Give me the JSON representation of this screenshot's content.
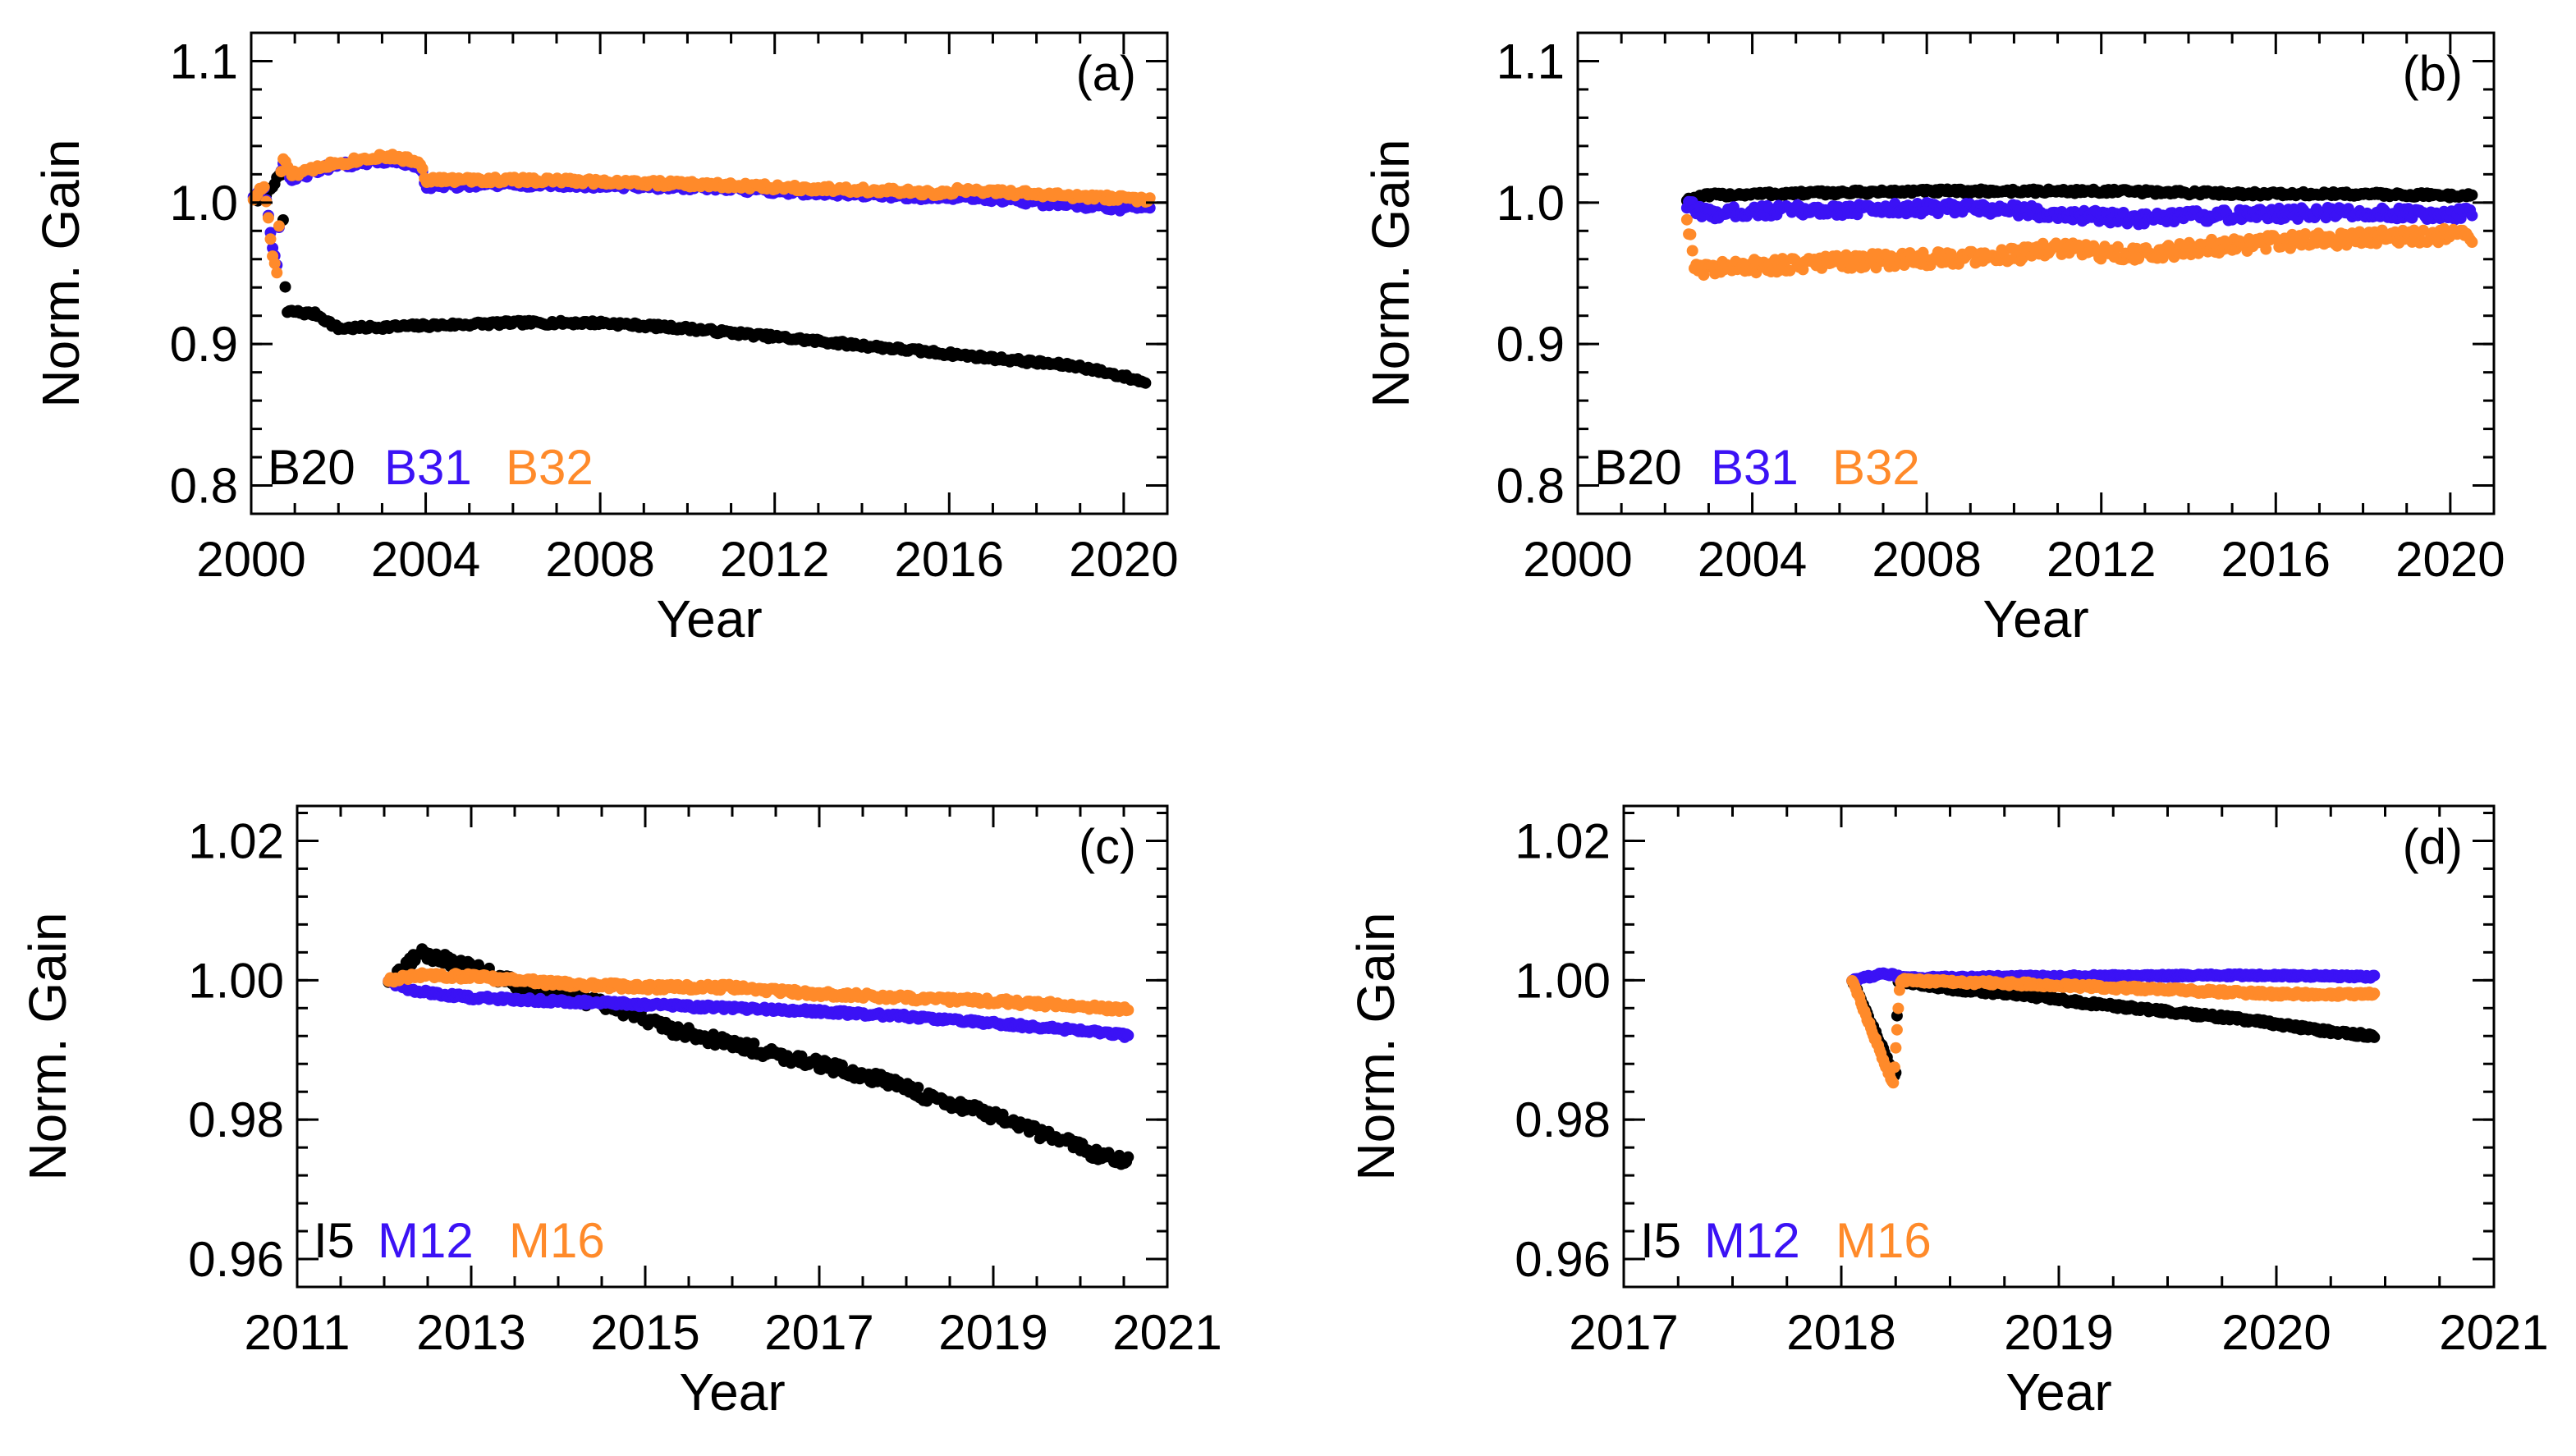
{
  "colors": {
    "black": "#000000",
    "blue": "#3b12f5",
    "orange": "#ff8a2a"
  },
  "chart_data": [
    {
      "id": "a",
      "type": "scatter",
      "panel_label": "(a)",
      "xlabel": "Year",
      "ylabel": "Norm. Gain",
      "xlim": [
        2000,
        2021
      ],
      "ylim": [
        0.78,
        1.12
      ],
      "xticks": [
        2000,
        2004,
        2008,
        2012,
        2016,
        2020
      ],
      "yticks": [
        0.8,
        0.9,
        1.0,
        1.1
      ],
      "ytick_labels": [
        "0.8",
        "0.9",
        "1.0",
        "1.1"
      ],
      "legend": [
        {
          "label": "B20",
          "color": "#000000"
        },
        {
          "label": "B31",
          "color": "#3b12f5"
        },
        {
          "label": "B32",
          "color": "#ff8a2a"
        }
      ],
      "series": [
        {
          "name": "B20",
          "color": "#000000",
          "jitter": 0.0015,
          "x": [
            2000.15,
            2000.4,
            2000.55,
            2000.7,
            2000.8,
            2000.95,
            2001.2,
            2001.5,
            2002,
            2003,
            2004,
            2005,
            2006,
            2007,
            2008,
            2009,
            2010,
            2011,
            2012,
            2013,
            2014,
            2015,
            2016,
            2017,
            2018,
            2019,
            2020,
            2020.5
          ],
          "y": [
            1.002,
            1.008,
            1.015,
            1.02,
            0.922,
            0.923,
            0.922,
            0.921,
            0.911,
            0.912,
            0.913,
            0.914,
            0.915,
            0.915,
            0.915,
            0.913,
            0.911,
            0.908,
            0.905,
            0.902,
            0.899,
            0.896,
            0.893,
            0.89,
            0.887,
            0.884,
            0.877,
            0.873
          ]
        },
        {
          "name": "B31",
          "color": "#3b12f5",
          "jitter": 0.002,
          "x": [
            2000.05,
            2000.3,
            2000.5,
            2000.6,
            2000.7,
            2000.9,
            2001.3,
            2001.6,
            2002,
            2003,
            2003.5,
            2003.9,
            2004,
            2006,
            2008,
            2010,
            2012,
            2014,
            2016,
            2016.2,
            2018,
            2019,
            2020,
            2020.6
          ],
          "y": [
            1.005,
            1.01,
            0.965,
            0.955,
            1.03,
            1.016,
            1.02,
            1.024,
            1.026,
            1.03,
            1.028,
            1.025,
            1.012,
            1.013,
            1.012,
            1.011,
            1.008,
            1.006,
            1.003,
            1.005,
            1.0,
            0.998,
            0.996,
            0.998
          ]
        },
        {
          "name": "B32",
          "color": "#ff8a2a",
          "jitter": 0.002,
          "x": [
            2000.05,
            2000.3,
            2000.5,
            2000.6,
            2000.7,
            2000.9,
            2001.3,
            2001.6,
            2002,
            2003,
            2003.5,
            2003.9,
            2004,
            2006,
            2008,
            2010,
            2012,
            2014,
            2016,
            2016.2,
            2018,
            2019,
            2020,
            2020.6
          ],
          "y": [
            1.003,
            1.012,
            0.96,
            0.95,
            1.033,
            1.02,
            1.022,
            1.026,
            1.028,
            1.033,
            1.031,
            1.028,
            1.016,
            1.016,
            1.015,
            1.013,
            1.011,
            1.009,
            1.006,
            1.009,
            1.006,
            1.004,
            1.003,
            1.002
          ]
        }
      ]
    },
    {
      "id": "b",
      "type": "scatter",
      "panel_label": "(b)",
      "xlabel": "Year",
      "ylabel": "Norm. Gain",
      "xlim": [
        2000,
        2021
      ],
      "ylim": [
        0.78,
        1.12
      ],
      "xticks": [
        2000,
        2004,
        2008,
        2012,
        2016,
        2020
      ],
      "yticks": [
        0.8,
        0.9,
        1.0,
        1.1
      ],
      "ytick_labels": [
        "0.8",
        "0.9",
        "1.0",
        "1.1"
      ],
      "legend": [
        {
          "label": "B20",
          "color": "#000000"
        },
        {
          "label": "B31",
          "color": "#3b12f5"
        },
        {
          "label": "B32",
          "color": "#ff8a2a"
        }
      ],
      "series": [
        {
          "name": "B20",
          "color": "#000000",
          "jitter": 0.0015,
          "x": [
            2002.5,
            2003,
            2004,
            2006,
            2008,
            2010,
            2012,
            2014,
            2016,
            2018,
            2020,
            2020.5
          ],
          "y": [
            1.002,
            1.005,
            1.006,
            1.007,
            1.008,
            1.008,
            1.008,
            1.007,
            1.006,
            1.006,
            1.005,
            1.005
          ]
        },
        {
          "name": "B31",
          "color": "#3b12f5",
          "jitter": 0.004,
          "x": [
            2002.5,
            2003,
            2004,
            2006,
            2008,
            2010,
            2011,
            2012,
            2013,
            2014,
            2016,
            2018,
            2020,
            2020.5
          ],
          "y": [
            0.998,
            0.992,
            0.994,
            0.995,
            0.996,
            0.995,
            0.992,
            0.99,
            0.988,
            0.99,
            0.992,
            0.993,
            0.992,
            0.992
          ]
        },
        {
          "name": "B32",
          "color": "#ff8a2a",
          "jitter": 0.005,
          "x": [
            2002.5,
            2002.7,
            2004,
            2006,
            2008,
            2010,
            2011,
            2012,
            2013,
            2014,
            2016,
            2018,
            2020,
            2020.5
          ],
          "y": [
            0.99,
            0.953,
            0.955,
            0.958,
            0.96,
            0.963,
            0.968,
            0.965,
            0.963,
            0.968,
            0.972,
            0.975,
            0.977,
            0.976
          ]
        }
      ]
    },
    {
      "id": "c",
      "type": "scatter",
      "panel_label": "(c)",
      "xlabel": "Year",
      "ylabel": "Norm. Gain",
      "xlim": [
        2011,
        2021
      ],
      "ylim": [
        0.956,
        1.025
      ],
      "xticks": [
        2011,
        2013,
        2015,
        2017,
        2019,
        2021
      ],
      "yticks": [
        0.96,
        0.98,
        1.0,
        1.02
      ],
      "ytick_labels": [
        "0.96",
        "0.98",
        "1.00",
        "1.02"
      ],
      "legend": [
        {
          "label": "I5",
          "color": "#000000"
        },
        {
          "label": "M12",
          "color": "#3b12f5"
        },
        {
          "label": "M16",
          "color": "#ff8a2a"
        }
      ],
      "series": [
        {
          "name": "I5",
          "color": "#000000",
          "jitter": 0.0008,
          "x": [
            2012.05,
            2012.2,
            2012.4,
            2012.8,
            2013.2,
            2013.6,
            2014,
            2014.5,
            2014.9,
            2015.3,
            2015.8,
            2016.3,
            2016.8,
            2017.3,
            2017.8,
            2018.3,
            2018.8,
            2019.3,
            2019.8,
            2020.2,
            2020.55
          ],
          "y": [
            1.0,
            1.001,
            1.004,
            1.0025,
            1.001,
            0.999,
            0.998,
            0.9965,
            0.995,
            0.993,
            0.9915,
            0.99,
            0.9885,
            0.987,
            0.9855,
            0.983,
            0.9815,
            0.979,
            0.977,
            0.975,
            0.974
          ]
        },
        {
          "name": "M12",
          "color": "#3b12f5",
          "jitter": 0.0003,
          "x": [
            2012.05,
            2012.3,
            2013,
            2014,
            2015,
            2016,
            2017,
            2018,
            2019,
            2020,
            2020.55
          ],
          "y": [
            1.0,
            0.9985,
            0.9975,
            0.997,
            0.9965,
            0.996,
            0.9955,
            0.9948,
            0.9938,
            0.9928,
            0.992
          ]
        },
        {
          "name": "M16",
          "color": "#ff8a2a",
          "jitter": 0.0004,
          "x": [
            2012.05,
            2012.5,
            2013,
            2014,
            2015,
            2016,
            2017,
            2018,
            2019,
            2020,
            2020.55
          ],
          "y": [
            1.0,
            1.0008,
            1.0005,
            0.9995,
            0.999,
            0.999,
            0.998,
            0.9975,
            0.997,
            0.9963,
            0.9958
          ]
        }
      ]
    },
    {
      "id": "d",
      "type": "scatter",
      "panel_label": "(d)",
      "xlabel": "Year",
      "ylabel": "Norm. Gain",
      "xlim": [
        2017,
        2021
      ],
      "ylim": [
        0.956,
        1.025
      ],
      "xticks": [
        2017,
        2018,
        2019,
        2020,
        2021
      ],
      "yticks": [
        0.96,
        0.98,
        1.0,
        1.02
      ],
      "ytick_labels": [
        "0.96",
        "0.98",
        "1.00",
        "1.02"
      ],
      "legend": [
        {
          "label": "I5",
          "color": "#000000"
        },
        {
          "label": "M12",
          "color": "#3b12f5"
        },
        {
          "label": "M16",
          "color": "#ff8a2a"
        }
      ],
      "series": [
        {
          "name": "I5",
          "color": "#000000",
          "jitter": 0.0003,
          "x": [
            2018.05,
            2018.15,
            2018.25,
            2018.26,
            2018.5,
            2018.8,
            2019.1,
            2019.5,
            2019.9,
            2020.2,
            2020.45
          ],
          "y": [
            1.0,
            0.993,
            0.986,
            1.0,
            0.9988,
            0.998,
            0.9968,
            0.9955,
            0.9942,
            0.9928,
            0.992
          ]
        },
        {
          "name": "M12",
          "color": "#3b12f5",
          "jitter": 0.0002,
          "x": [
            2018.05,
            2018.2,
            2018.3,
            2018.8,
            2019.3,
            2019.8,
            2020.2,
            2020.45
          ],
          "y": [
            1.0,
            1.001,
            1.0003,
            1.0005,
            1.0006,
            1.0007,
            1.0006,
            1.0005
          ]
        },
        {
          "name": "M16",
          "color": "#ff8a2a",
          "jitter": 0.0003,
          "x": [
            2018.05,
            2018.15,
            2018.24,
            2018.27,
            2018.5,
            2018.8,
            2019.2,
            2019.6,
            2020,
            2020.45
          ],
          "y": [
            1.0,
            0.992,
            0.985,
            1.0,
            0.9998,
            0.9995,
            0.999,
            0.9985,
            0.998,
            0.998
          ]
        }
      ]
    }
  ]
}
